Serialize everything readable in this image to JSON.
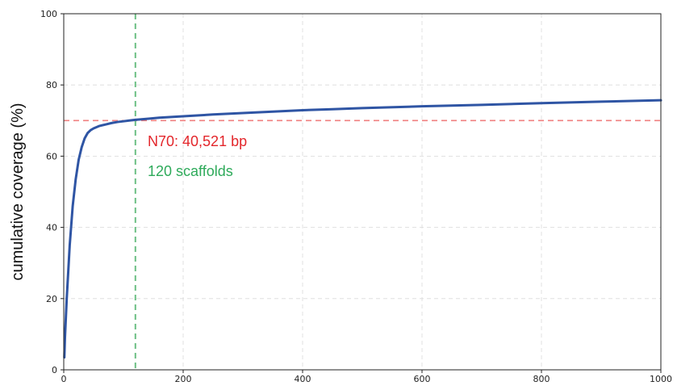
{
  "chart_data": {
    "type": "line",
    "title": "",
    "xlabel": "",
    "ylabel": "cumulative coverage (%)",
    "xlim": [
      0,
      1000
    ],
    "ylim": [
      0,
      100
    ],
    "grid": true,
    "xticks": [
      0,
      200,
      400,
      600,
      800,
      1000
    ],
    "yticks": [
      0,
      20,
      40,
      60,
      80,
      100
    ],
    "series": [
      {
        "color": "#2f55a4",
        "x": [
          1,
          2,
          5,
          10,
          15,
          20,
          25,
          30,
          35,
          40,
          45,
          50,
          60,
          70,
          80,
          90,
          100,
          110,
          120,
          140,
          160,
          200,
          250,
          300,
          350,
          400,
          450,
          500,
          600,
          700,
          800,
          900,
          1000
        ],
        "y": [
          3.5,
          9,
          20,
          35,
          46,
          53.5,
          59,
          62.5,
          65,
          66.5,
          67.3,
          67.8,
          68.5,
          68.9,
          69.3,
          69.6,
          69.8,
          70.0,
          70.2,
          70.5,
          70.8,
          71.2,
          71.7,
          72.1,
          72.5,
          72.9,
          73.2,
          73.5,
          74.0,
          74.4,
          74.9,
          75.3,
          75.7
        ]
      }
    ],
    "reference_lines": [
      {
        "orientation": "horizontal",
        "value": 70,
        "color": "#f08080"
      },
      {
        "orientation": "vertical",
        "value": 120,
        "color": "#6cbf84"
      }
    ],
    "annotations": [
      {
        "text": "N70: 40,521 bp",
        "color": "#e3262b"
      },
      {
        "text": "120 scaffolds",
        "color": "#2eaa5a"
      }
    ]
  }
}
